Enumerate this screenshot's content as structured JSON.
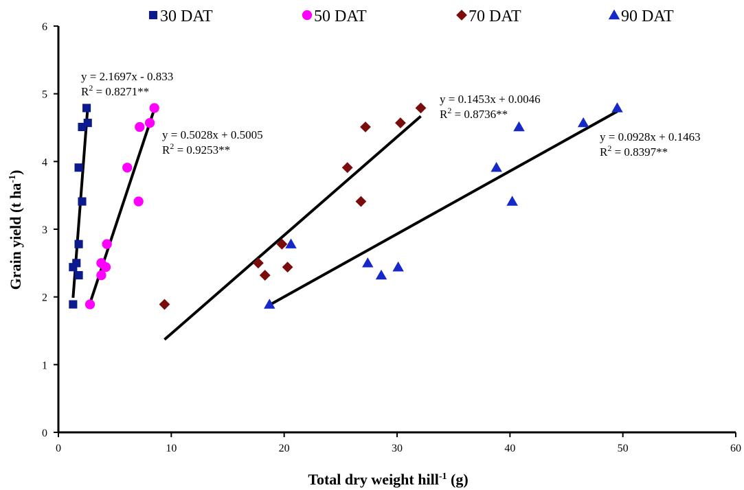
{
  "chart_data": {
    "type": "scatter",
    "xlabel": "Total dry weight hill",
    "xlabel_sup": "-1",
    "xlabel_suffix": " (g)",
    "ylabel": "Grain yield (t ha",
    "ylabel_sup": "-1",
    "ylabel_suffix": ")",
    "xlim": [
      0,
      60
    ],
    "ylim": [
      0,
      6
    ],
    "xticks": [
      0,
      10,
      20,
      30,
      40,
      50,
      60
    ],
    "yticks": [
      0,
      1,
      2,
      3,
      4,
      5,
      6
    ],
    "grid": false,
    "legend_position": "top",
    "series": [
      {
        "name": "30 DAT",
        "marker": "square",
        "color": "#0b1a8c",
        "x": [
          1.3,
          1.3,
          1.6,
          1.8,
          1.8,
          1.8,
          2.1,
          2.1,
          2.5,
          2.6
        ],
        "y": [
          1.89,
          2.44,
          2.5,
          2.32,
          2.78,
          3.91,
          3.41,
          4.51,
          4.79,
          4.57
        ],
        "fit": {
          "x": [
            1.3,
            2.6
          ],
          "slope": 2.1697,
          "intercept": -0.833
        },
        "equation": "y = 2.1697x - 0.833",
        "r2": "2",
        "r2_prefix": "R",
        "r2_value": " = 0.8271**"
      },
      {
        "name": "50 DAT",
        "marker": "circle",
        "color": "#ff00ff",
        "x": [
          2.8,
          3.8,
          3.8,
          4.2,
          4.3,
          6.1,
          7.1,
          7.2,
          8.1,
          8.5
        ],
        "y": [
          1.89,
          2.32,
          2.5,
          2.44,
          2.78,
          3.91,
          3.41,
          4.51,
          4.57,
          4.79
        ],
        "fit": {
          "x": [
            2.8,
            8.5
          ],
          "slope": 0.5028,
          "intercept": 0.5005
        },
        "equation": "y = 0.5028x + 0.5005",
        "r2": "2",
        "r2_prefix": "R",
        "r2_value": " = 0.9253**"
      },
      {
        "name": "70 DAT",
        "marker": "diamond",
        "color": "#7b0c0c",
        "x": [
          9.4,
          17.7,
          18.3,
          19.8,
          20.3,
          25.6,
          26.8,
          27.2,
          30.3,
          32.1
        ],
        "y": [
          1.89,
          2.5,
          2.32,
          2.78,
          2.44,
          3.91,
          3.41,
          4.51,
          4.57,
          4.79
        ],
        "fit": {
          "x": [
            9.4,
            32.1
          ],
          "slope": 0.1453,
          "intercept": 0.0046
        },
        "equation": "y = 0.1453x + 0.0046",
        "r2": "2",
        "r2_prefix": "R",
        "r2_value": " = 0.8736**"
      },
      {
        "name": "90 DAT",
        "marker": "triangle",
        "color": "#1628c8",
        "x": [
          18.7,
          20.6,
          27.4,
          28.6,
          30.1,
          38.8,
          40.2,
          40.8,
          46.5,
          49.5
        ],
        "y": [
          1.89,
          2.78,
          2.5,
          2.32,
          2.44,
          3.91,
          3.41,
          4.51,
          4.57,
          4.79
        ],
        "fit": {
          "x": [
            18.7,
            49.5
          ],
          "slope": 0.0928,
          "intercept": 0.1463
        },
        "equation": "y = 0.0928x + 0.1463",
        "r2": "2",
        "r2_prefix": "R",
        "r2_value": " = 0.8397**"
      }
    ]
  }
}
